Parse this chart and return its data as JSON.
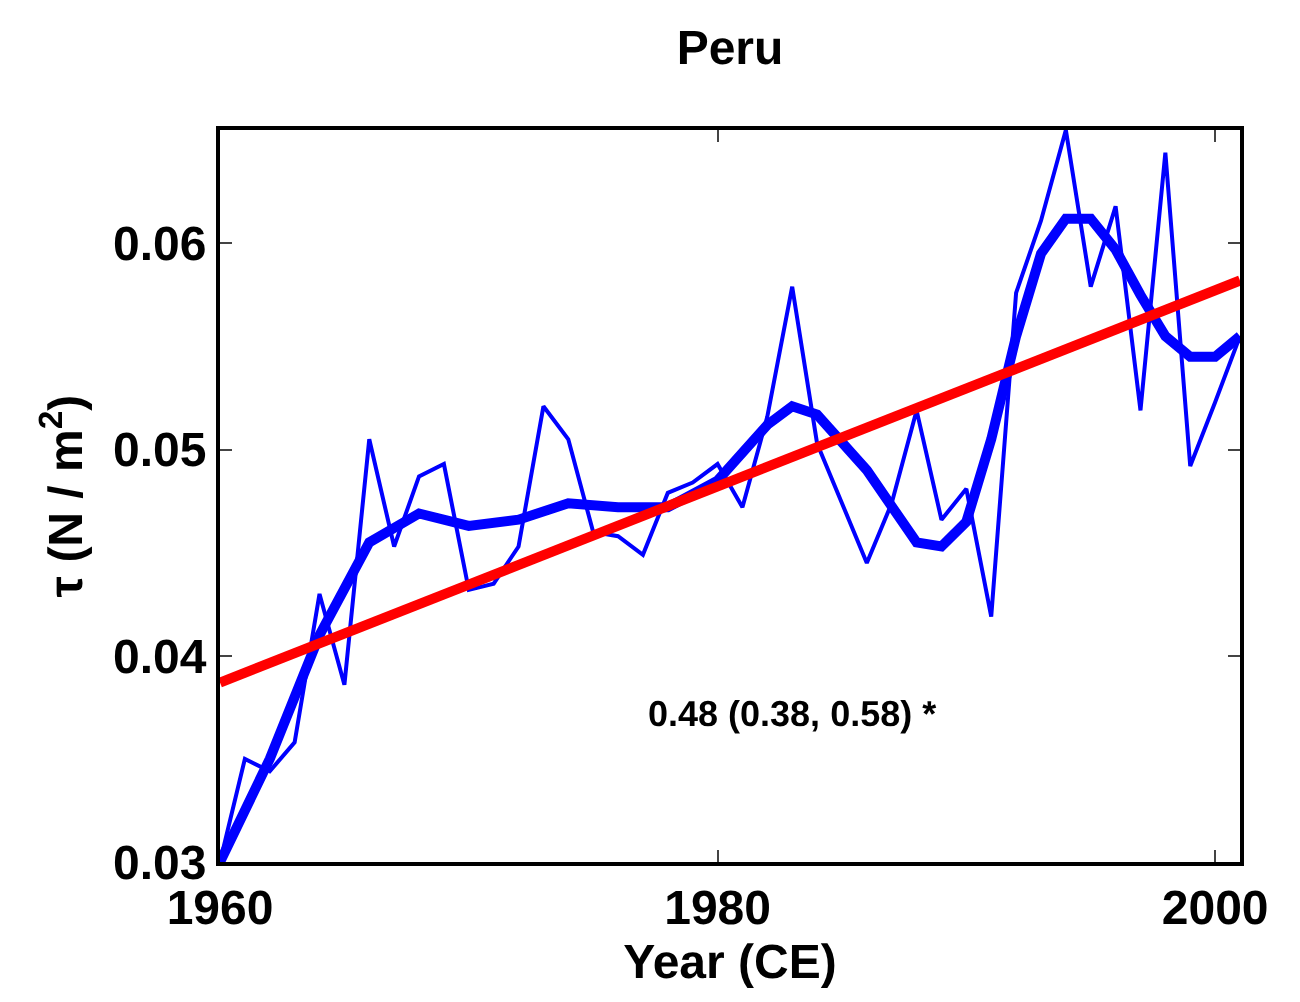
{
  "chart_data": {
    "type": "line",
    "title": "Peru",
    "xlabel": "Year (CE)",
    "ylabel": "τ (N / m$^{2}$)",
    "xlim": [
      1960,
      2001
    ],
    "ylim": [
      0.03,
      0.0655
    ],
    "xticks": [
      1960,
      1980,
      2000
    ],
    "yticks": [
      0.03,
      0.04,
      0.05,
      0.06
    ],
    "marker": "none",
    "series": [
      {
        "color": "#0000ff",
        "x": [
          1960,
          1961,
          1962,
          1963,
          1964,
          1965,
          1966,
          1967,
          1968,
          1969,
          1970,
          1971,
          1972,
          1973,
          1974,
          1975,
          1976,
          1977,
          1978,
          1979,
          1980,
          1981,
          1982,
          1983,
          1984,
          1985,
          1986,
          1987,
          1988,
          1989,
          1990,
          1991,
          1992,
          1993,
          1994,
          1995,
          1996,
          1997,
          1998,
          1999,
          2000,
          2001
        ],
        "values": [
          0.03,
          0.035,
          0.0344,
          0.0358,
          0.043,
          0.0386,
          0.0505,
          0.0453,
          0.0487,
          0.0493,
          0.0432,
          0.0435,
          0.0453,
          0.0521,
          0.0505,
          0.046,
          0.0458,
          0.0449,
          0.0479,
          0.0484,
          0.0493,
          0.0472,
          0.0516,
          0.0579,
          0.0503,
          0.0474,
          0.0445,
          0.0474,
          0.0519,
          0.0466,
          0.0481,
          0.0419,
          0.0576,
          0.0611,
          0.0655,
          0.0579,
          0.0618,
          0.0519,
          0.0644,
          0.0492,
          0.0523,
          0.0555
        ]
      },
      {
        "color": "#0000ff",
        "x": [
          1960,
          1962,
          1964,
          1966,
          1968,
          1970,
          1972,
          1974,
          1976,
          1978,
          1980,
          1982,
          1983,
          1984,
          1986,
          1988,
          1989,
          1990,
          1991,
          1992,
          1993,
          1994,
          1995,
          1996,
          1997,
          1998,
          1999,
          2000,
          2001
        ],
        "values": [
          0.03,
          0.035,
          0.041,
          0.0455,
          0.0469,
          0.0463,
          0.0466,
          0.0474,
          0.0472,
          0.0472,
          0.0485,
          0.0512,
          0.0521,
          0.0517,
          0.049,
          0.0455,
          0.0453,
          0.0465,
          0.0505,
          0.0555,
          0.0595,
          0.0612,
          0.0612,
          0.0597,
          0.0575,
          0.0555,
          0.0545,
          0.0545,
          0.0555
        ]
      },
      {
        "color": "#ff0000",
        "x": [
          1960,
          2001
        ],
        "values": [
          0.0387,
          0.0582
        ]
      }
    ],
    "annotations": [
      "0.48 (0.38, 0.58) *"
    ]
  }
}
